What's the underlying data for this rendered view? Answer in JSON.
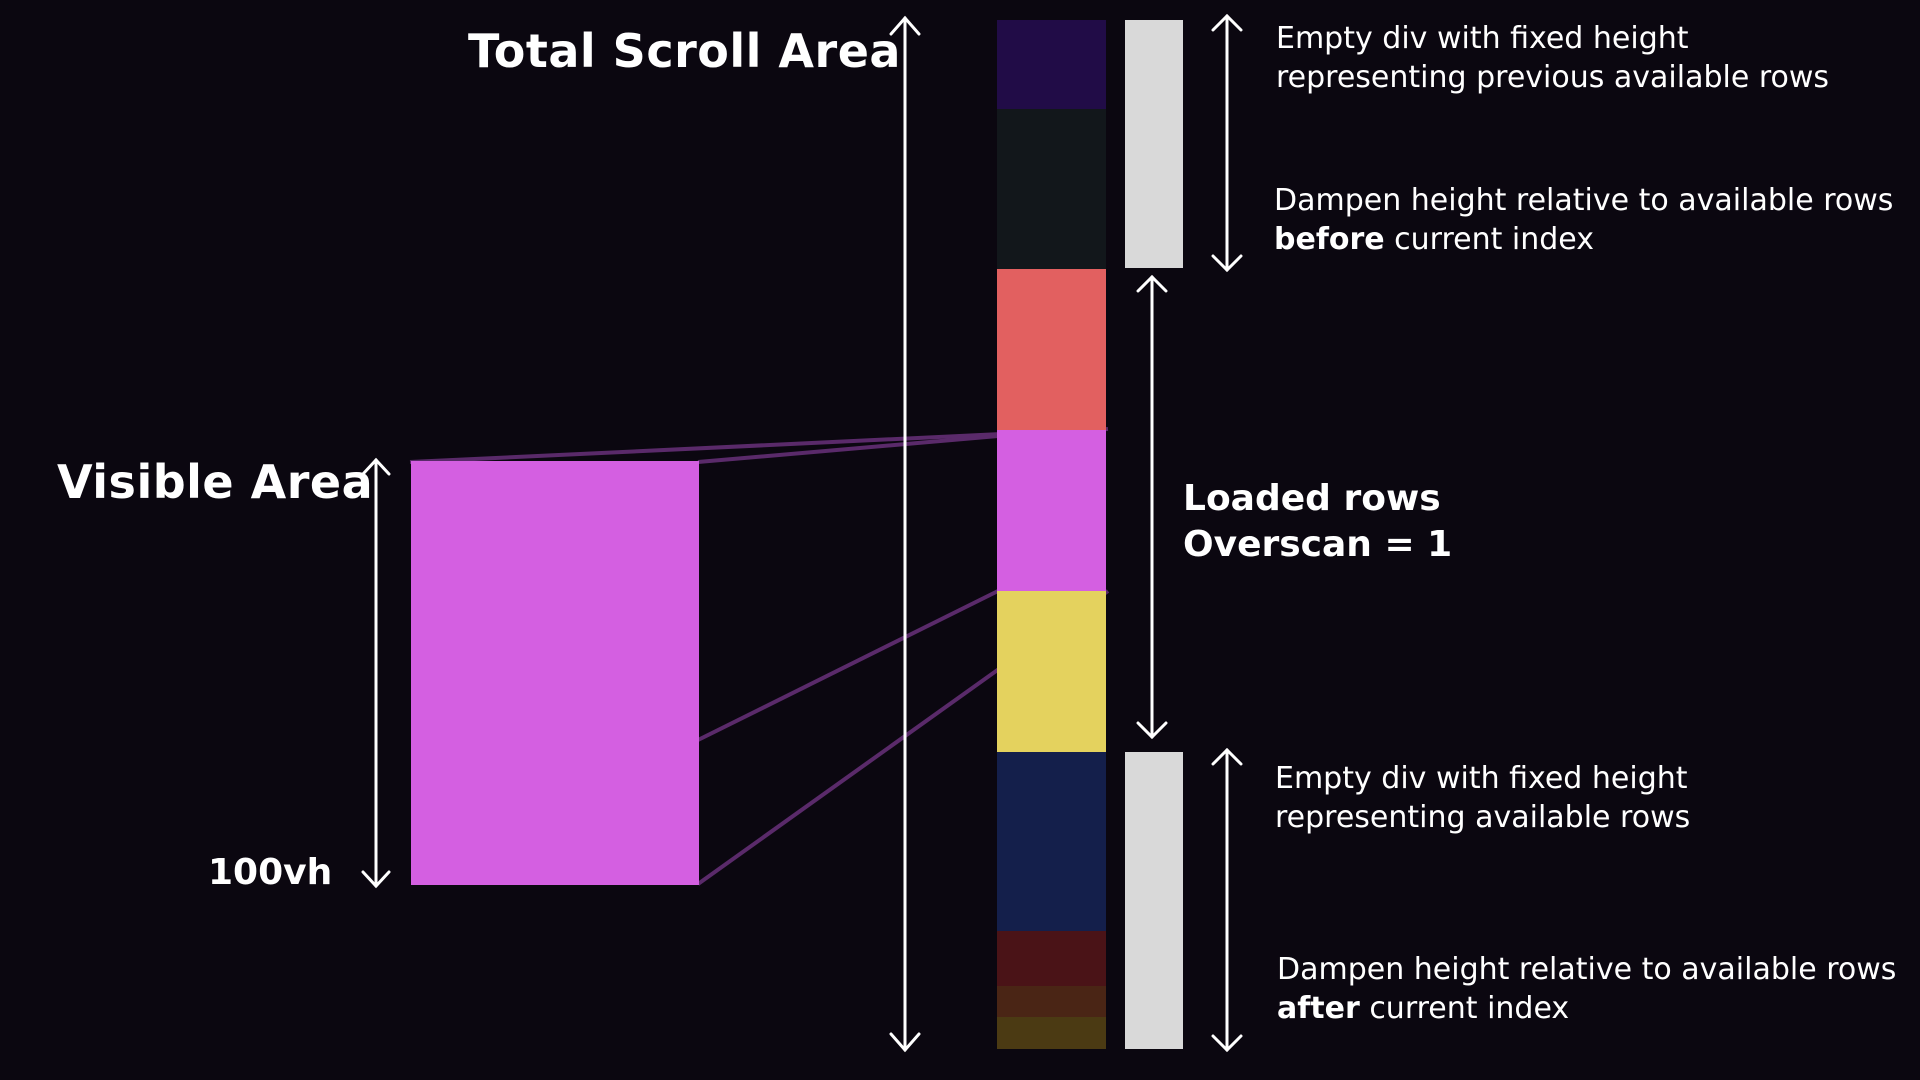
{
  "labels": {
    "total_scroll_area": "Total Scroll Area",
    "visible_area": "Visible Area",
    "viewport_height": "100vh",
    "loaded_rows": "Loaded rows",
    "overscan": "Overscan = 1"
  },
  "top_spacer": {
    "line1": "Empty div with fixed height",
    "line2": "representing previous available rows",
    "note_prefix": "Dampen height relative to available rows",
    "note_bold": "before",
    "note_suffix": " current index"
  },
  "bottom_spacer": {
    "line1": "Empty div with fixed height",
    "line2": "representing available rows",
    "note_prefix": "Dampen height relative to available rows",
    "note_bold": "after",
    "note_suffix": " current index"
  },
  "colors": {
    "background": "#0b0710",
    "row_prev_1": "#210c47",
    "row_prev_2": "#12171b",
    "row_loaded_above": "#e26060",
    "row_visible": "#d45fe1",
    "row_loaded_below": "#e4d25e",
    "row_next_1": "#141f4b",
    "row_next_2": "#4a1317",
    "row_next_3": "#4a2515",
    "row_next_4": "#4b3a13",
    "spacer_div": "#d9d9d9",
    "viewport_box": "#d45fe1",
    "projection_line": "#5a2a6a",
    "arrow": "#ffffff"
  }
}
